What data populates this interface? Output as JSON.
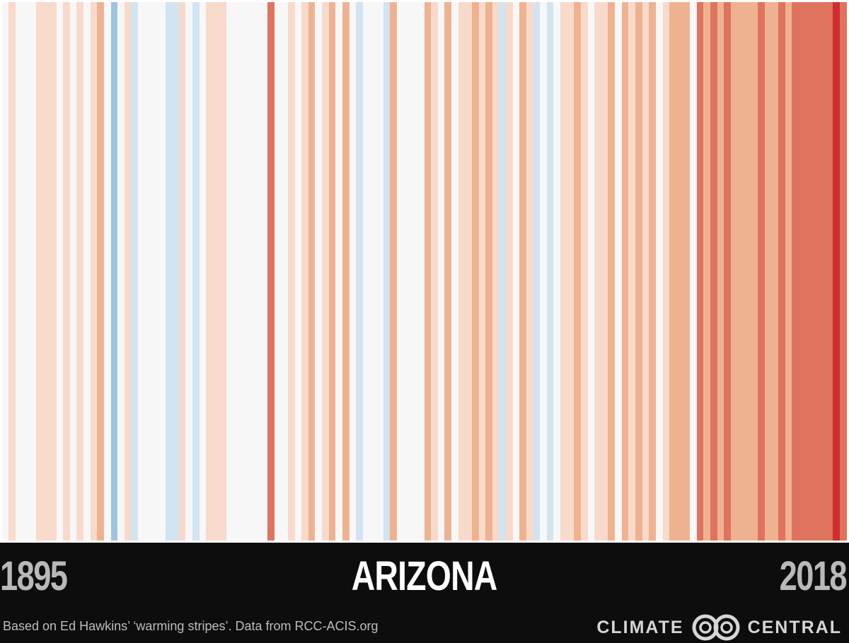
{
  "chart": {
    "title": "ARIZONA",
    "start_year": "1895",
    "end_year": "2018",
    "credit": "Based on Ed Hawkins’ ‘warming stripes’. Data from RCC-ACIS.org",
    "brand": {
      "left": "CLIMATE",
      "right": "CENTRAL",
      "logo_icon": "climate-central-logo-icon"
    }
  },
  "palette": {
    "-2": "#9ec4e2",
    "-1": "#d2e3f1",
    "0": "#f7f7f7",
    "1": "#f8dacb",
    "2": "#efb291",
    "3": "#e0735e",
    "4": "#d12d31"
  },
  "chart_data": {
    "type": "heatmap",
    "title": "ARIZONA",
    "x_range": [
      1895,
      2018
    ],
    "scale": "relative temperature class (blue = cooler, red = warmer)",
    "years": [
      1895,
      1896,
      1897,
      1898,
      1899,
      1900,
      1901,
      1902,
      1903,
      1904,
      1905,
      1906,
      1907,
      1908,
      1909,
      1910,
      1911,
      1912,
      1913,
      1914,
      1915,
      1916,
      1917,
      1918,
      1919,
      1920,
      1921,
      1922,
      1923,
      1924,
      1925,
      1926,
      1927,
      1928,
      1929,
      1930,
      1931,
      1932,
      1933,
      1934,
      1935,
      1936,
      1937,
      1938,
      1939,
      1940,
      1941,
      1942,
      1943,
      1944,
      1945,
      1946,
      1947,
      1948,
      1949,
      1950,
      1951,
      1952,
      1953,
      1954,
      1955,
      1956,
      1957,
      1958,
      1959,
      1960,
      1961,
      1962,
      1963,
      1964,
      1965,
      1966,
      1967,
      1968,
      1969,
      1970,
      1971,
      1972,
      1973,
      1974,
      1975,
      1976,
      1977,
      1978,
      1979,
      1980,
      1981,
      1982,
      1983,
      1984,
      1985,
      1986,
      1987,
      1988,
      1989,
      1990,
      1991,
      1992,
      1993,
      1994,
      1995,
      1996,
      1997,
      1998,
      1999,
      2000,
      2001,
      2002,
      2003,
      2004,
      2005,
      2006,
      2007,
      2008,
      2009,
      2010,
      2011,
      2012,
      2013,
      2014,
      2015,
      2016,
      2017,
      2018
    ],
    "values": [
      0,
      1,
      0,
      0,
      0,
      1,
      1,
      1,
      0,
      1,
      0,
      1,
      0,
      1,
      2,
      0,
      -2,
      0,
      1,
      -1,
      0,
      0,
      0,
      0,
      -1,
      -1,
      1,
      0,
      -1,
      0,
      1,
      1,
      1,
      0,
      0,
      0,
      0,
      0,
      0,
      3,
      0,
      0,
      1,
      0,
      1,
      2,
      0,
      1,
      2,
      0,
      2,
      0,
      -1,
      0,
      0,
      0,
      -1,
      2,
      0,
      0,
      0,
      0,
      2,
      1,
      0,
      2,
      0,
      1,
      1,
      2,
      1,
      2,
      1,
      -1,
      1,
      0,
      2,
      1,
      -1,
      0,
      -1,
      0,
      1,
      1,
      2,
      1,
      0,
      1,
      1,
      2,
      0,
      2,
      1,
      2,
      1,
      2,
      0,
      1,
      2,
      2,
      2,
      0,
      3,
      2,
      3,
      2,
      3,
      2,
      2,
      2,
      2,
      3,
      2,
      2,
      3,
      2,
      3,
      3,
      3,
      3,
      3,
      3,
      4,
      3
    ]
  }
}
